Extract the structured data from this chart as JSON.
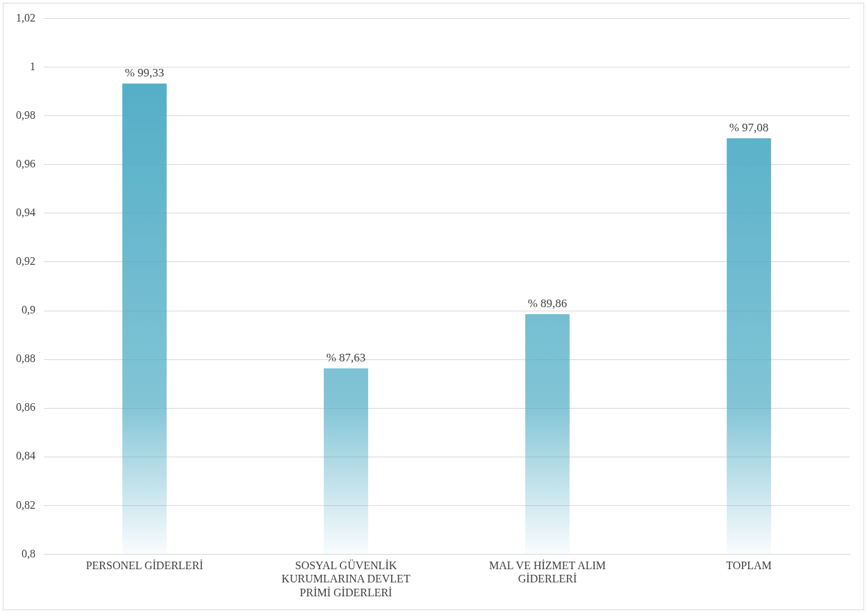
{
  "chart_data": {
    "type": "bar",
    "categories": [
      "PERSONEL GİDERLERİ",
      "SOSYAL GÜVENLİK KURUMLARINA DEVLET PRİMİ GİDERLERİ",
      "MAL VE HİZMET ALIM GİDERLERİ",
      "TOPLAM"
    ],
    "values": [
      0.9933,
      0.8763,
      0.8986,
      0.9708
    ],
    "value_labels": [
      "% 99,33",
      "% 87,63",
      "% 89,86",
      "% 97,08"
    ],
    "color": "#4aaac4",
    "ylim": [
      0.8,
      1.02
    ],
    "yticks": [
      {
        "value": 0.8,
        "label": "0,8"
      },
      {
        "value": 0.82,
        "label": "0,82"
      },
      {
        "value": 0.84,
        "label": "0,84"
      },
      {
        "value": 0.86,
        "label": "0,86"
      },
      {
        "value": 0.88,
        "label": "0,88"
      },
      {
        "value": 0.9,
        "label": "0,9"
      },
      {
        "value": 0.92,
        "label": "0,92"
      },
      {
        "value": 0.94,
        "label": "0,94"
      },
      {
        "value": 0.96,
        "label": "0,96"
      },
      {
        "value": 0.98,
        "label": "0,98"
      },
      {
        "value": 1,
        "label": "1"
      },
      {
        "value": 1.02,
        "label": "1,02"
      }
    ],
    "grid": "y",
    "legend": false
  }
}
